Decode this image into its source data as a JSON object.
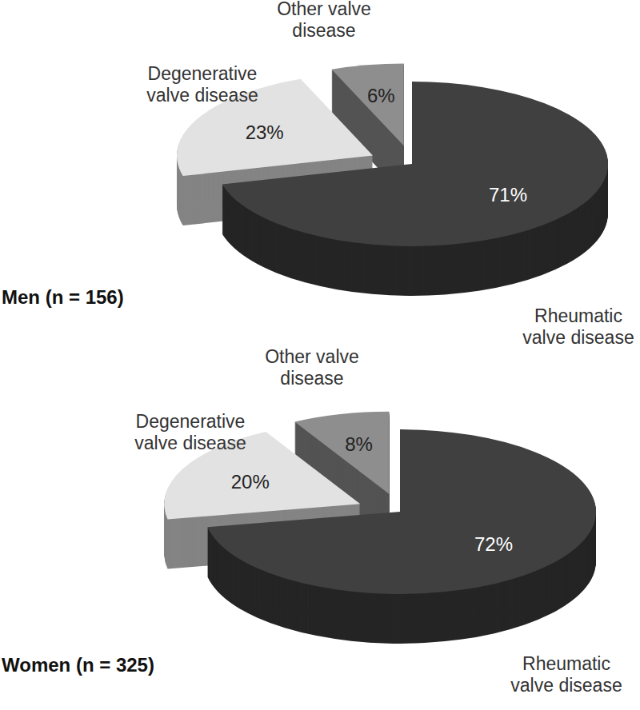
{
  "chart_data": [
    {
      "type": "pie",
      "title": "Men (n = 156)",
      "categories": [
        "Rheumatic valve disease",
        "Degenerative valve disease",
        "Other valve disease"
      ],
      "values": [
        71,
        23,
        6
      ],
      "value_labels": [
        "71%",
        "23%",
        "6%"
      ],
      "colors": [
        "#404040",
        "#e2e2e2",
        "#8e8e8e"
      ],
      "data_labels": true
    },
    {
      "type": "pie",
      "title": "Women (n = 325)",
      "categories": [
        "Rheumatic valve disease",
        "Degenerative valve disease",
        "Other valve disease"
      ],
      "values": [
        72,
        20,
        8
      ],
      "value_labels": [
        "72%",
        "20%",
        "8%"
      ],
      "colors": [
        "#404040",
        "#e2e2e2",
        "#8e8e8e"
      ],
      "data_labels": true
    }
  ]
}
